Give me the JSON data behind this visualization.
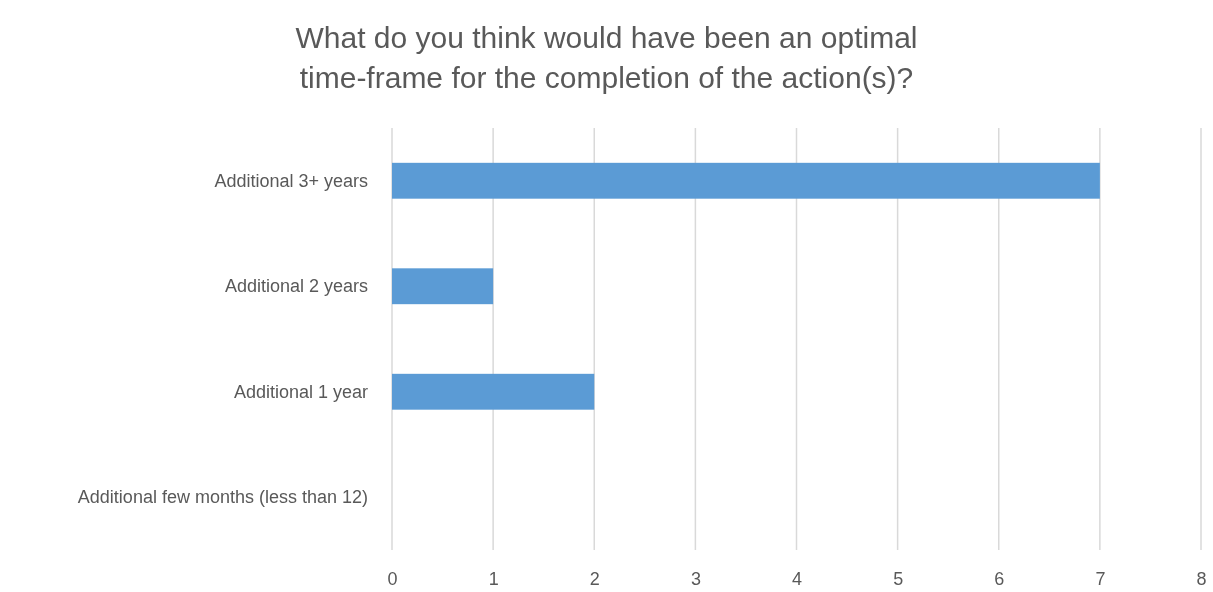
{
  "chart_data": {
    "type": "bar",
    "orientation": "horizontal",
    "title": "What do you think would have been an optimal time-frame for the completion of the action(s)?",
    "categories": [
      "Additional 3+ years",
      "Additional 2 years",
      "Additional 1 year",
      "Additional few months (less than 12)"
    ],
    "values": [
      7,
      1,
      2,
      0
    ],
    "color": "#5b9bd5",
    "xlim": [
      0,
      8
    ],
    "xticks": [
      0,
      1,
      2,
      3,
      4,
      5,
      6,
      7,
      8
    ],
    "grid": "x"
  }
}
